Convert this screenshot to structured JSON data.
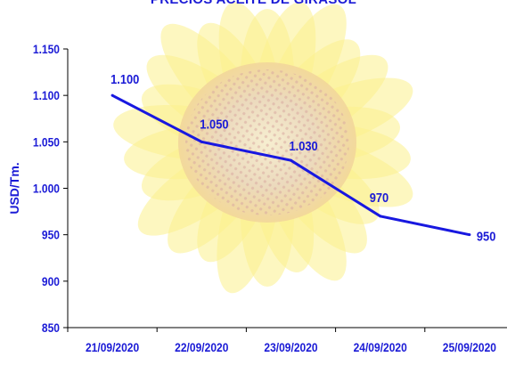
{
  "chart_data": {
    "type": "line",
    "title": "PRECIOS ACEITE DE GIRASOL",
    "xlabel": "",
    "ylabel": "USD/Tm.",
    "categories": [
      "21/09/2020",
      "22/09/2020",
      "23/09/2020",
      "24/09/2020",
      "25/09/2020"
    ],
    "series": [
      {
        "values": [
          1100,
          1050,
          1030,
          970,
          950
        ]
      }
    ],
    "data_labels": [
      "1.100",
      "1.050",
      "1.030",
      "970",
      "950"
    ],
    "ylim": [
      850,
      1150
    ],
    "yticks": [
      850,
      900,
      950,
      1000,
      1050,
      1100,
      1150
    ],
    "ytick_labels": [
      "850",
      "900",
      "950",
      "1.000",
      "1.050",
      "1.100",
      "1.150"
    ],
    "grid": false,
    "colors": {
      "line": "#1818e0",
      "text": "#1b1bd6",
      "axis": "#000000",
      "background_petals": "#fbf08c",
      "background_center": "#e6c9b0"
    }
  }
}
